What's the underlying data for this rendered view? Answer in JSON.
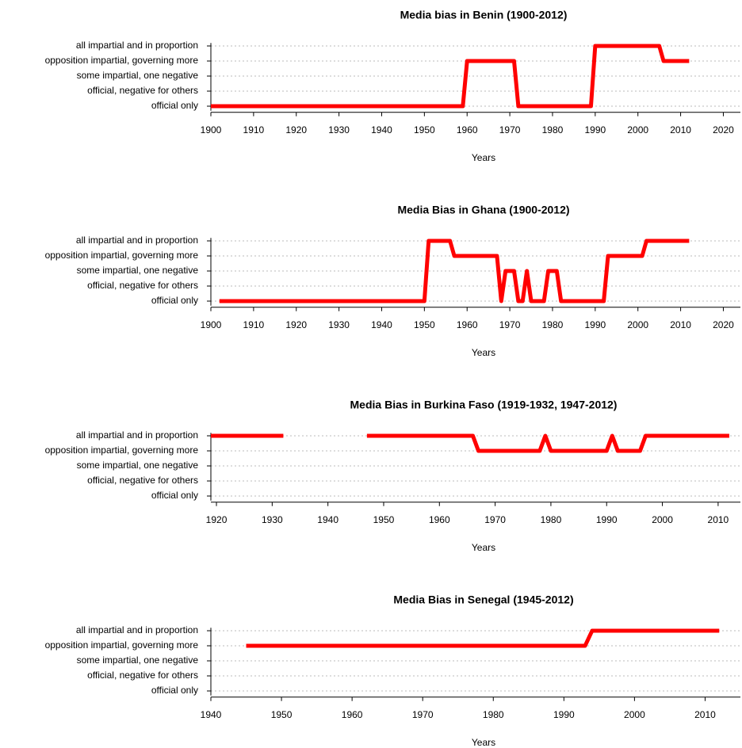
{
  "chart_data": [
    {
      "type": "line",
      "title": "Media bias in Benin (1900-2012)",
      "xlabel": "Years",
      "color": "#ff0000",
      "x": [
        1900,
        1959,
        1960,
        1971,
        1972,
        1989,
        1990,
        2005,
        2006,
        2012
      ],
      "values": [
        0,
        0,
        3,
        3,
        0,
        0,
        4,
        4,
        3,
        3
      ],
      "xlim": [
        1900,
        2024
      ],
      "xticks": [
        1900,
        1910,
        1920,
        1930,
        1940,
        1950,
        1960,
        1970,
        1980,
        1990,
        2000,
        2010,
        2020
      ],
      "ylim": [
        -0.3,
        4.2
      ],
      "yticks": [
        {
          "value": 0,
          "label": "official only"
        },
        {
          "value": 1,
          "label": "official, negative for others"
        },
        {
          "value": 2,
          "label": "some impartial, one negative"
        },
        {
          "value": 3,
          "label": "opposition impartial, governing more"
        },
        {
          "value": 4,
          "label": "all impartial and in proportion"
        }
      ],
      "grid": true
    },
    {
      "type": "line",
      "title": "Media Bias in Ghana (1900-2012)",
      "xlabel": "Years",
      "color": "#ff0000",
      "x": [
        1902,
        1950,
        1951,
        1956,
        1957,
        1967,
        1968,
        1969,
        1971,
        1972,
        1973,
        1974,
        1975,
        1978,
        1979,
        1981,
        1982,
        1992,
        1993,
        2001,
        2002,
        2012
      ],
      "values": [
        0,
        0,
        4,
        4,
        3,
        3,
        0,
        2,
        2,
        0,
        0,
        2,
        0,
        0,
        2,
        2,
        0,
        0,
        3,
        3,
        4,
        4
      ],
      "xlim": [
        1900,
        2024
      ],
      "xticks": [
        1900,
        1910,
        1920,
        1930,
        1940,
        1950,
        1960,
        1970,
        1980,
        1990,
        2000,
        2010,
        2020
      ],
      "ylim": [
        -0.3,
        4.2
      ],
      "yticks": [
        {
          "value": 0,
          "label": "official only"
        },
        {
          "value": 1,
          "label": "official, negative for others"
        },
        {
          "value": 2,
          "label": "some impartial, one negative"
        },
        {
          "value": 3,
          "label": "opposition impartial, governing more"
        },
        {
          "value": 4,
          "label": "all impartial and in proportion"
        }
      ],
      "grid": true
    },
    {
      "type": "line",
      "title": "Media Bias in Burkina Faso (1919-1932, 1947-2012)",
      "xlabel": "Years",
      "color": "#ff0000",
      "x": [
        1919,
        1932,
        1940,
        1947,
        1966,
        1967,
        1978,
        1979,
        1980,
        1990,
        1991,
        1992,
        1996,
        1997,
        2012
      ],
      "values": [
        4,
        4,
        null,
        4,
        4,
        3,
        3,
        4,
        3,
        3,
        4,
        3,
        3,
        4,
        4
      ],
      "xlim": [
        1919,
        2014
      ],
      "xticks": [
        1920,
        1930,
        1940,
        1950,
        1960,
        1970,
        1980,
        1990,
        2000,
        2010
      ],
      "ylim": [
        -0.3,
        4.2
      ],
      "yticks": [
        {
          "value": 0,
          "label": "official only"
        },
        {
          "value": 1,
          "label": "official, negative for others"
        },
        {
          "value": 2,
          "label": "some impartial, one negative"
        },
        {
          "value": 3,
          "label": "opposition impartial, governing more"
        },
        {
          "value": 4,
          "label": "all impartial and in proportion"
        }
      ],
      "grid": true
    },
    {
      "type": "line",
      "title": "Media Bias in Senegal (1945-2012)",
      "xlabel": "Years",
      "color": "#ff0000",
      "x": [
        1945,
        1993,
        1994,
        2012
      ],
      "values": [
        3,
        3,
        4,
        4
      ],
      "xlim": [
        1940,
        2015
      ],
      "xticks": [
        1940,
        1950,
        1960,
        1970,
        1980,
        1990,
        2000,
        2010
      ],
      "ylim": [
        -0.3,
        4.2
      ],
      "yticks": [
        {
          "value": 0,
          "label": "official only"
        },
        {
          "value": 1,
          "label": "official, negative for others"
        },
        {
          "value": 2,
          "label": "some impartial, one negative"
        },
        {
          "value": 3,
          "label": "opposition impartial, governing more"
        },
        {
          "value": 4,
          "label": "all impartial and in proportion"
        }
      ],
      "grid": true
    }
  ]
}
